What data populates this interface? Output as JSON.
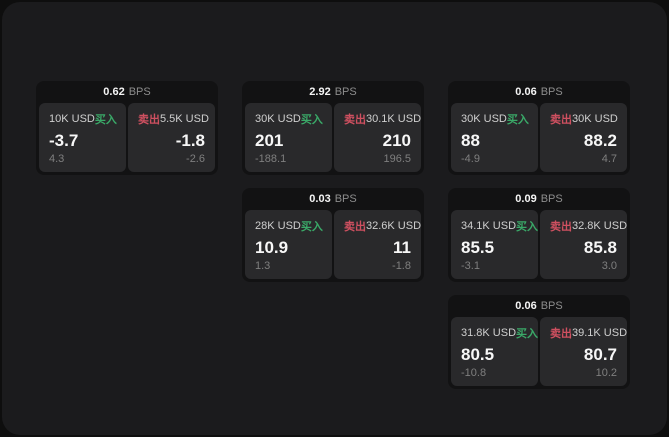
{
  "labels": {
    "bps_suffix": "BPS",
    "buy": "买入",
    "sell": "卖出"
  },
  "colors": {
    "buy_green": "#3aa968",
    "sell_red": "#cf5060",
    "window_bg": "#1b1b1d",
    "card_bg": "#121213",
    "panel_bg": "#29292b"
  },
  "cards": [
    {
      "grid": {
        "row": 1,
        "col": 1
      },
      "bps": "0.62",
      "buy": {
        "amount": "10K USD",
        "value": "-3.7",
        "sub": "4.3"
      },
      "sell": {
        "amount": "5.5K USD",
        "value": "-1.8",
        "sub": "-2.6"
      }
    },
    {
      "grid": {
        "row": 1,
        "col": 2
      },
      "bps": "2.92",
      "buy": {
        "amount": "30K USD",
        "value": "201",
        "sub": "-188.1"
      },
      "sell": {
        "amount": "30.1K USD",
        "value": "210",
        "sub": "196.5"
      }
    },
    {
      "grid": {
        "row": 1,
        "col": 3
      },
      "bps": "0.06",
      "buy": {
        "amount": "30K USD",
        "value": "88",
        "sub": "-4.9"
      },
      "sell": {
        "amount": "30K USD",
        "value": "88.2",
        "sub": "4.7"
      }
    },
    {
      "grid": {
        "row": 2,
        "col": 2
      },
      "bps": "0.03",
      "buy": {
        "amount": "28K USD",
        "value": "10.9",
        "sub": "1.3"
      },
      "sell": {
        "amount": "32.6K USD",
        "value": "11",
        "sub": "-1.8"
      }
    },
    {
      "grid": {
        "row": 2,
        "col": 3
      },
      "bps": "0.09",
      "buy": {
        "amount": "34.1K USD",
        "value": "85.5",
        "sub": "-3.1"
      },
      "sell": {
        "amount": "32.8K USD",
        "value": "85.8",
        "sub": "3.0"
      }
    },
    {
      "grid": {
        "row": 3,
        "col": 3
      },
      "bps": "0.06",
      "buy": {
        "amount": "31.8K USD",
        "value": "80.5",
        "sub": "-10.8"
      },
      "sell": {
        "amount": "39.1K USD",
        "value": "80.7",
        "sub": "10.2"
      }
    }
  ]
}
